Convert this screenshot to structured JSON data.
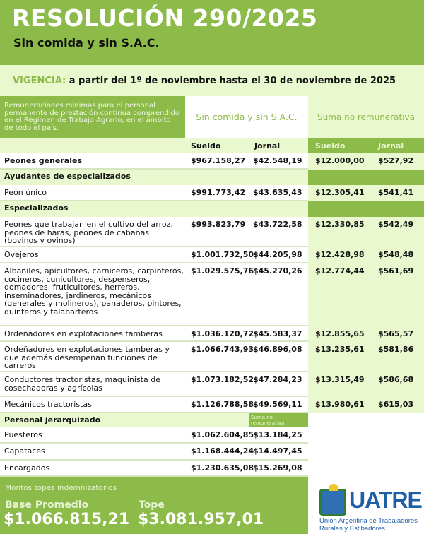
{
  "header": {
    "title": "RESOLUCIÓN 290/2025",
    "subtitle": "Sin comida y sin S.A.C."
  },
  "vigencia": {
    "label": "VIGENCIA:",
    "text": "a partir del 1º de noviembre hasta el 30 de noviembre de 2025"
  },
  "table_header": {
    "description": "Remuneraciones mínimas para el personal permanente de prestación continua comprendido en el Régimen de Trabajo Agrario, en el ámbito de todo el país.",
    "group1": "Sin comida y sin S.A.C.",
    "group2": "Suma no remunerativa",
    "columns": [
      "Sueldo",
      "Jornal",
      "Sueldo",
      "Jornal"
    ]
  },
  "rows": [
    {
      "type": "bold",
      "label": "Peones generales",
      "values": [
        "$967.158,27",
        "$42.548,19",
        "$12.000,00",
        "$527,92"
      ]
    },
    {
      "type": "sec",
      "label": "Ayudantes de especializados"
    },
    {
      "type": "item",
      "label": "Peón único",
      "values": [
        "$991.773,42",
        "$43.635,43",
        "$12.305,41",
        "$541,41"
      ]
    },
    {
      "type": "sec",
      "label": "Especializados"
    },
    {
      "type": "item",
      "label": "Peones que trabajan en el cultivo del arroz, peones de haras, peones de cabañas (bovinos y ovinos)",
      "values": [
        "$993.823,79",
        "$43.722,58",
        "$12.330,85",
        "$542,49"
      ]
    },
    {
      "type": "item",
      "label": "Ovejeros",
      "values": [
        "$1.001.732,50",
        "$44.205,98",
        "$12.428,98",
        "$548,48"
      ]
    },
    {
      "type": "item",
      "label": "Albañiles, apicultores, carniceros, carpinteros, cocineros, cunicultores, despenseros, domadores, fruticultores, herreros, inseminadores, jardineros, mecánicos (generales y molineros), panaderos, pintores, quinteros y talabarteros",
      "values": [
        "$1.029.575,76",
        "$45.270,26",
        "$12.774,44",
        "$561,69"
      ]
    },
    {
      "type": "item",
      "label": "Ordeñadores en explotaciones tamberas",
      "values": [
        "$1.036.120,72",
        "$45.583,37",
        "$12.855,65",
        "$565,57"
      ]
    },
    {
      "type": "item",
      "label": "Ordeñadores en explotaciones tamberas y que además desempeñan funciones de carreros",
      "values": [
        "$1.066.743,93",
        "$46.896,08",
        "$13.235,61",
        "$581,86"
      ]
    },
    {
      "type": "item",
      "label": "Conductores tractoristas, maquinista de cosechadoras y agrícolas",
      "values": [
        "$1.073.182,52",
        "$47.284,23",
        "$13.315,49",
        "$586,68"
      ]
    },
    {
      "type": "item",
      "label": "Mecánicos tractoristas",
      "values": [
        "$1.126.788,58",
        "$49.569,11",
        "$13.980,61",
        "$615,03"
      ]
    },
    {
      "type": "sec2",
      "label": "Personal jerarquizado",
      "badge": "Suma no remunerativa"
    },
    {
      "type": "jer",
      "label": "Puesteros",
      "values": [
        "$1.062.604,85",
        "$13.184,25"
      ]
    },
    {
      "type": "jer",
      "label": "Capataces",
      "values": [
        "$1.168.444,24",
        "$14.497,45"
      ]
    },
    {
      "type": "jer",
      "label": "Encargados",
      "values": [
        "$1.230.635,08",
        "$15.269,08"
      ]
    }
  ],
  "footer": {
    "title": "Montos topes indemnizatorios",
    "base_label": "Base Promedio",
    "base_value": "$1.066.815,21",
    "tope_label": "Tope",
    "tope_value": "$3.081.957,01"
  },
  "logo": {
    "name": "UATRE",
    "full_name": "Unión Argentina de Trabajadores Rurales y Estibadores"
  },
  "colors": {
    "green": "#8dbb49",
    "light_green": "#eaf8cf",
    "logo_blue": "#1f5fa6"
  }
}
